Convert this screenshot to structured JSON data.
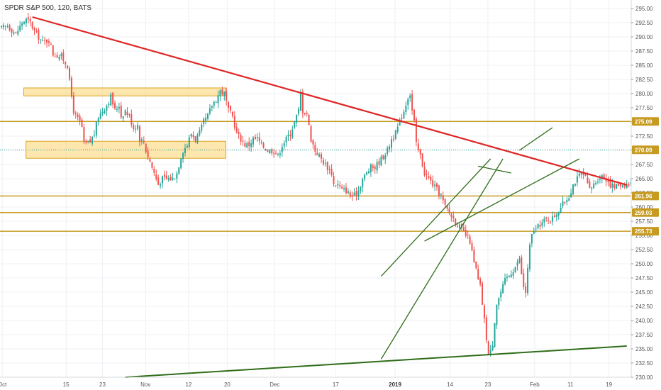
{
  "chart_data": {
    "type": "candlestick",
    "title": "SPDR S&P 500, 120, BATS",
    "ylim": [
      230.0,
      296.5
    ],
    "y_ticks": [
      "295.00",
      "292.50",
      "290.00",
      "287.50",
      "285.00",
      "282.50",
      "280.00",
      "277.50",
      "275.00",
      "272.50",
      "270.00",
      "267.50",
      "265.00",
      "262.50",
      "260.00",
      "257.50",
      "255.00",
      "252.50",
      "250.00",
      "247.50",
      "245.00",
      "242.50",
      "240.00",
      "237.50",
      "235.00",
      "232.50",
      "230.00"
    ],
    "x_ticks": [
      {
        "label": "Oct",
        "bar": 3
      },
      {
        "label": "15",
        "bar": 89
      },
      {
        "label": "23",
        "bar": 138
      },
      {
        "label": "Nov",
        "bar": 196
      },
      {
        "label": "12",
        "bar": 254
      },
      {
        "label": "20",
        "bar": 306
      },
      {
        "label": "Dec",
        "bar": 370
      },
      {
        "label": "17",
        "bar": 452
      },
      {
        "label": "2019",
        "bar": 532,
        "bold": true
      },
      {
        "label": "14",
        "bar": 606
      },
      {
        "label": "23",
        "bar": 657
      },
      {
        "label": "Feb",
        "bar": 720
      },
      {
        "label": "11",
        "bar": 768
      },
      {
        "label": "19",
        "bar": 820
      }
    ],
    "bar_count": 850,
    "candle_count": 257,
    "candle_step": 2.91,
    "close_path": [
      [
        0,
        291.5
      ],
      [
        3,
        292
      ],
      [
        7,
        290.5
      ],
      [
        10,
        292.5
      ],
      [
        12,
        293
      ],
      [
        14,
        292.5
      ],
      [
        16,
        291
      ],
      [
        20,
        289
      ],
      [
        23,
        289.5
      ],
      [
        25,
        287
      ],
      [
        29,
        286.5
      ],
      [
        32,
        285
      ],
      [
        33,
        282
      ],
      [
        35,
        277
      ],
      [
        36,
        276
      ],
      [
        38,
        275
      ],
      [
        39,
        274
      ],
      [
        40,
        271
      ],
      [
        43,
        271.5
      ],
      [
        45,
        273
      ],
      [
        47,
        276
      ],
      [
        49,
        277
      ],
      [
        51,
        278
      ],
      [
        53,
        279.5
      ],
      [
        55,
        277
      ],
      [
        57,
        278
      ],
      [
        58,
        276
      ],
      [
        60,
        277
      ],
      [
        62,
        276
      ],
      [
        64,
        274
      ],
      [
        66,
        274.5
      ],
      [
        67,
        272
      ],
      [
        69,
        271.5
      ],
      [
        70,
        270
      ],
      [
        72,
        268
      ],
      [
        74,
        266
      ],
      [
        76,
        264
      ],
      [
        78,
        265
      ],
      [
        80,
        265
      ],
      [
        83,
        265
      ],
      [
        85,
        266
      ],
      [
        87,
        269
      ],
      [
        88,
        270
      ],
      [
        90,
        271
      ],
      [
        92,
        273
      ],
      [
        94,
        272
      ],
      [
        96,
        273
      ],
      [
        98,
        275
      ],
      [
        100,
        276
      ],
      [
        102,
        278
      ],
      [
        104,
        279
      ],
      [
        106,
        280.5
      ],
      [
        108,
        280
      ],
      [
        110,
        277
      ],
      [
        112,
        276
      ],
      [
        114,
        273
      ],
      [
        116,
        272
      ],
      [
        118,
        271
      ],
      [
        120,
        271
      ],
      [
        122,
        272
      ],
      [
        124,
        272
      ],
      [
        126,
        271
      ],
      [
        129,
        270
      ],
      [
        132,
        270
      ],
      [
        134,
        269
      ],
      [
        136,
        271
      ],
      [
        138,
        272
      ],
      [
        140,
        273
      ],
      [
        142,
        275
      ],
      [
        144,
        277
      ],
      [
        145,
        280
      ],
      [
        146,
        277
      ],
      [
        148,
        276.5
      ],
      [
        150,
        272
      ],
      [
        152,
        270
      ],
      [
        154,
        269
      ],
      [
        156,
        268
      ],
      [
        158,
        267
      ],
      [
        160,
        266
      ],
      [
        161,
        264
      ],
      [
        163,
        264
      ],
      [
        165,
        263
      ],
      [
        167,
        263
      ],
      [
        169,
        262
      ],
      [
        171,
        262
      ],
      [
        173,
        263
      ],
      [
        175,
        265
      ],
      [
        177,
        266
      ],
      [
        179,
        267
      ],
      [
        181,
        267
      ],
      [
        183,
        268
      ],
      [
        185,
        269
      ],
      [
        187,
        270
      ],
      [
        189,
        272
      ],
      [
        191,
        273
      ],
      [
        193,
        275
      ],
      [
        195,
        277
      ],
      [
        197,
        279.5
      ],
      [
        198,
        280
      ],
      [
        199,
        277
      ],
      [
        200,
        275
      ],
      [
        201,
        271
      ],
      [
        202,
        270
      ],
      [
        203,
        269
      ],
      [
        205,
        266
      ],
      [
        207,
        265
      ],
      [
        209,
        264
      ],
      [
        211,
        263
      ],
      [
        213,
        262
      ],
      [
        215,
        260
      ],
      [
        217,
        259
      ],
      [
        219,
        258
      ],
      [
        221,
        257
      ],
      [
        223,
        256
      ],
      [
        225,
        255
      ],
      [
        227,
        254
      ],
      [
        228,
        252
      ],
      [
        229,
        250
      ],
      [
        230,
        249
      ],
      [
        231,
        247
      ],
      [
        232,
        246
      ],
      [
        233,
        243
      ],
      [
        234,
        240
      ],
      [
        235,
        237
      ],
      [
        236,
        234
      ],
      [
        237,
        234.5
      ],
      [
        238,
        236
      ],
      [
        239,
        240
      ],
      [
        240,
        243
      ],
      [
        242,
        245
      ],
      [
        244,
        247
      ],
      [
        246,
        248
      ],
      [
        248,
        249
      ],
      [
        250,
        250
      ],
      [
        251,
        251
      ],
      [
        252,
        248
      ],
      [
        253,
        246
      ],
      [
        254,
        245
      ],
      [
        255,
        249
      ],
      [
        256,
        253
      ],
      [
        257,
        255
      ],
      [
        258,
        256
      ],
      [
        259,
        256
      ],
      [
        261,
        257
      ],
      [
        263,
        257.5
      ],
      [
        265,
        258
      ],
      [
        267,
        258
      ],
      [
        269,
        259
      ],
      [
        271,
        260
      ],
      [
        273,
        261
      ],
      [
        275,
        262
      ],
      [
        277,
        264
      ],
      [
        279,
        265
      ],
      [
        281,
        266
      ],
      [
        283,
        265
      ],
      [
        285,
        263
      ],
      [
        287,
        264
      ],
      [
        289,
        265
      ],
      [
        291,
        265.5
      ],
      [
        293,
        265
      ],
      [
        295,
        264
      ],
      [
        297,
        263.5
      ],
      [
        299,
        264
      ],
      [
        301,
        264
      ],
      [
        303,
        264
      ],
      [
        305,
        264
      ],
      [
        307,
        266
      ],
      [
        309,
        267
      ],
      [
        311,
        269
      ],
      [
        313,
        270
      ],
      [
        315,
        271
      ],
      [
        317,
        270.5
      ],
      [
        319,
        270
      ]
    ],
    "hlines": [
      {
        "price": 261.96,
        "label": "261.96"
      },
      {
        "price": 259.03,
        "label": "259.03"
      },
      {
        "price": 255.73,
        "label": "255.73"
      },
      {
        "price": 275.09,
        "label": "275.09"
      }
    ],
    "current_price": {
      "price": 270.09,
      "label": "270.09"
    },
    "zones": [
      {
        "bar_from": 32,
        "bar_to": 304,
        "price_low": 279.6,
        "price_high": 281.0
      },
      {
        "bar_from": 35,
        "bar_to": 304,
        "price_low": 268.6,
        "price_high": 271.6
      }
    ],
    "trendlines": [
      {
        "name": "red-downtrend",
        "color": "#e02424",
        "points": [
          [
            15,
            293.5
          ],
          [
            303,
            263.9
          ]
        ]
      },
      {
        "name": "green-long-support",
        "color": "#2f6d19",
        "points": [
          [
            60,
            230.0
          ],
          [
            303,
            235.5
          ]
        ]
      },
      {
        "name": "green-channel-lower",
        "color": "#2f6d19",
        "points": [
          [
            184,
            233.2
          ],
          [
            243,
            268.5
          ]
        ]
      },
      {
        "name": "green-channel-upper",
        "color": "#2f6d19",
        "points": [
          [
            184,
            247.8
          ],
          [
            237,
            268.5
          ]
        ]
      },
      {
        "name": "green-wedge-upper",
        "color": "#2f6d19",
        "points": [
          [
            251,
            270
          ],
          [
            267,
            274
          ]
        ]
      },
      {
        "name": "green-wedge-lower",
        "color": "#2f6d19",
        "points": [
          [
            205,
            254
          ],
          [
            280,
            268.5
          ]
        ]
      },
      {
        "name": "green-small-flag",
        "color": "#2f6d19",
        "points": [
          [
            231,
            267.2
          ],
          [
            247,
            266
          ]
        ]
      }
    ]
  },
  "colors": {
    "up": "#26a69a",
    "down": "#ef5350",
    "zone_fill": "#fbd46d",
    "zone_stroke": "#d9a621",
    "hline": "#c79b22",
    "price_badge": "#c79b22",
    "grid": "#eef0f3",
    "axis_text": "#555555"
  }
}
